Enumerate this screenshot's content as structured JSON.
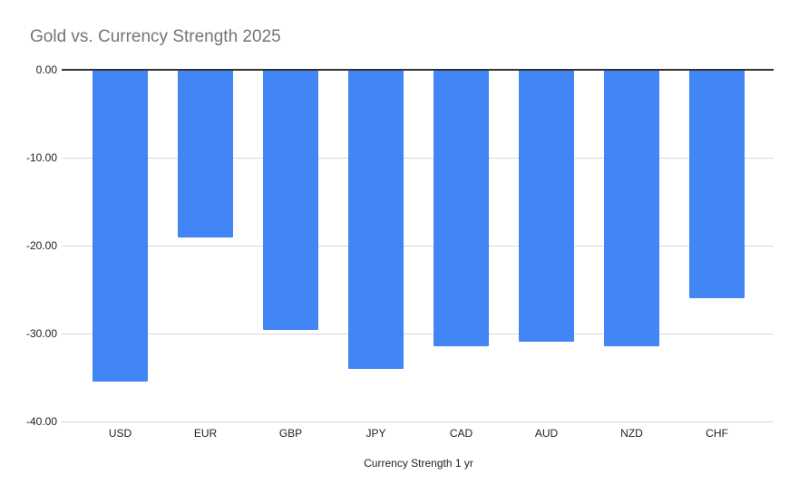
{
  "chart_data": {
    "type": "bar",
    "orientation": "vertical",
    "title": "Gold vs. Currency Strength 2025",
    "xlabel": "Currency Strength 1 yr",
    "ylabel": "",
    "categories": [
      "USD",
      "EUR",
      "GBP",
      "JPY",
      "CAD",
      "AUD",
      "NZD",
      "CHF"
    ],
    "values": [
      -35.5,
      -19.1,
      -29.6,
      -34.1,
      -31.5,
      -31.0,
      -31.5,
      -26.0
    ],
    "ylim": [
      -40,
      0
    ],
    "yticks": [
      0,
      -10,
      -20,
      -30,
      -40
    ],
    "ytick_labels": [
      "0.00",
      "-10.00",
      "-20.00",
      "-30.00",
      "-40.00"
    ],
    "grid": true,
    "legend_position": "none"
  },
  "colors": {
    "bar": "#4285f4",
    "title_text": "#757575",
    "axis_line": "#333333",
    "gridline": "#d9d9d9",
    "tick_label_text": "#222222",
    "background": "#ffffff"
  }
}
